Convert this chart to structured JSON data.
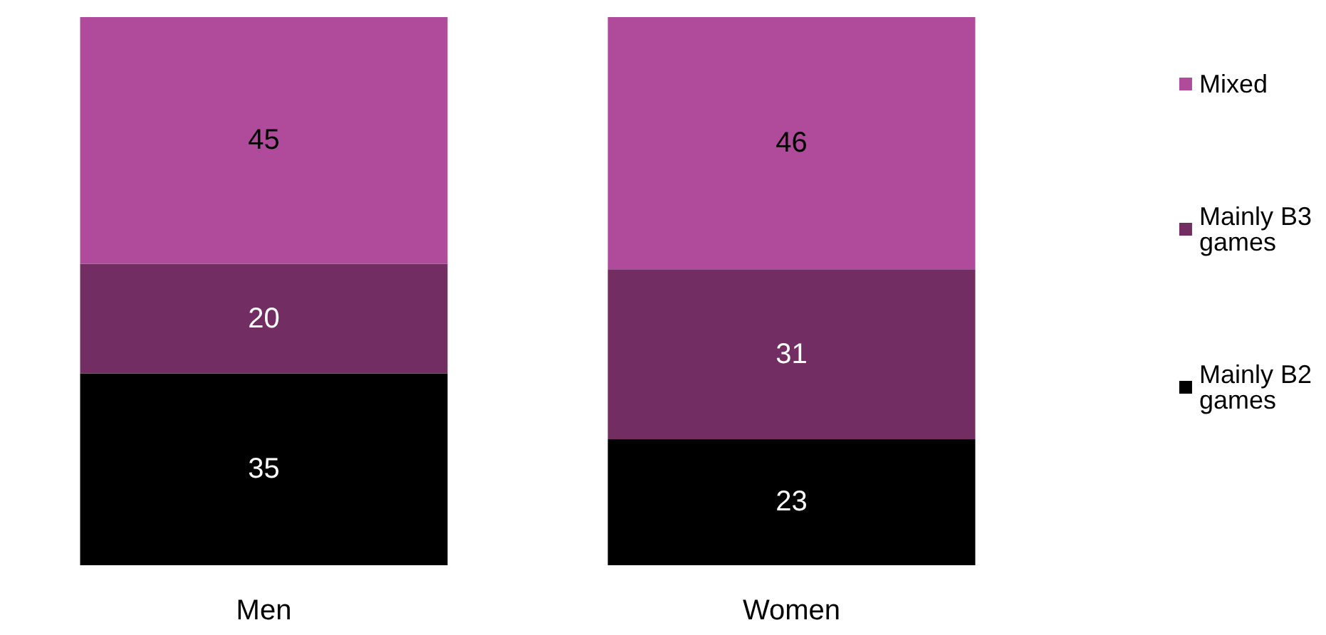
{
  "chart_data": {
    "type": "bar",
    "stacked": true,
    "categories": [
      "Men",
      "Women"
    ],
    "series": [
      {
        "name": "Mainly B2 games",
        "color": "#000000",
        "values": [
          35,
          23
        ]
      },
      {
        "name": "Mainly B3 games",
        "color": "#722d63",
        "values": [
          20,
          31
        ]
      },
      {
        "name": "Mixed",
        "color": "#b04a9b",
        "values": [
          45,
          46
        ]
      }
    ],
    "ylim": [
      0,
      100
    ],
    "tick_labels": "x",
    "data_labels": true,
    "legend": "right"
  }
}
